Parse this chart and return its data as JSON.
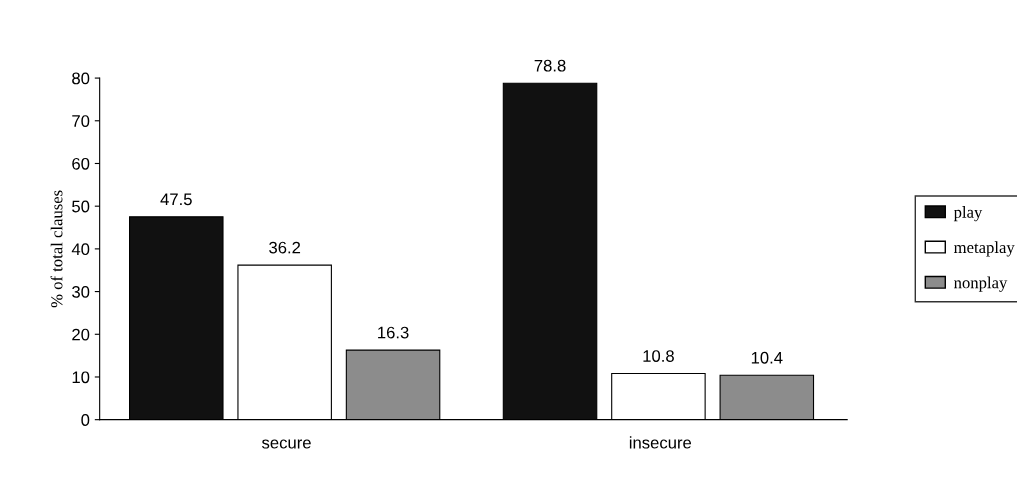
{
  "chart_data": {
    "type": "bar",
    "ylabel": "% of total clauses",
    "categories": [
      "secure",
      "insecure"
    ],
    "series": [
      {
        "name": "play",
        "color": "#111111",
        "values": [
          47.5,
          78.8
        ]
      },
      {
        "name": "metaplay",
        "color": "#ffffff",
        "values": [
          36.2,
          10.8
        ]
      },
      {
        "name": "nonplay",
        "color": "#8c8c8c",
        "values": [
          16.3,
          10.4
        ]
      }
    ],
    "ylim": [
      0,
      80
    ],
    "yticks": [
      0,
      10,
      20,
      30,
      40,
      50,
      60,
      70,
      80
    ],
    "data_labels": true,
    "legend": "right",
    "grid": false
  }
}
